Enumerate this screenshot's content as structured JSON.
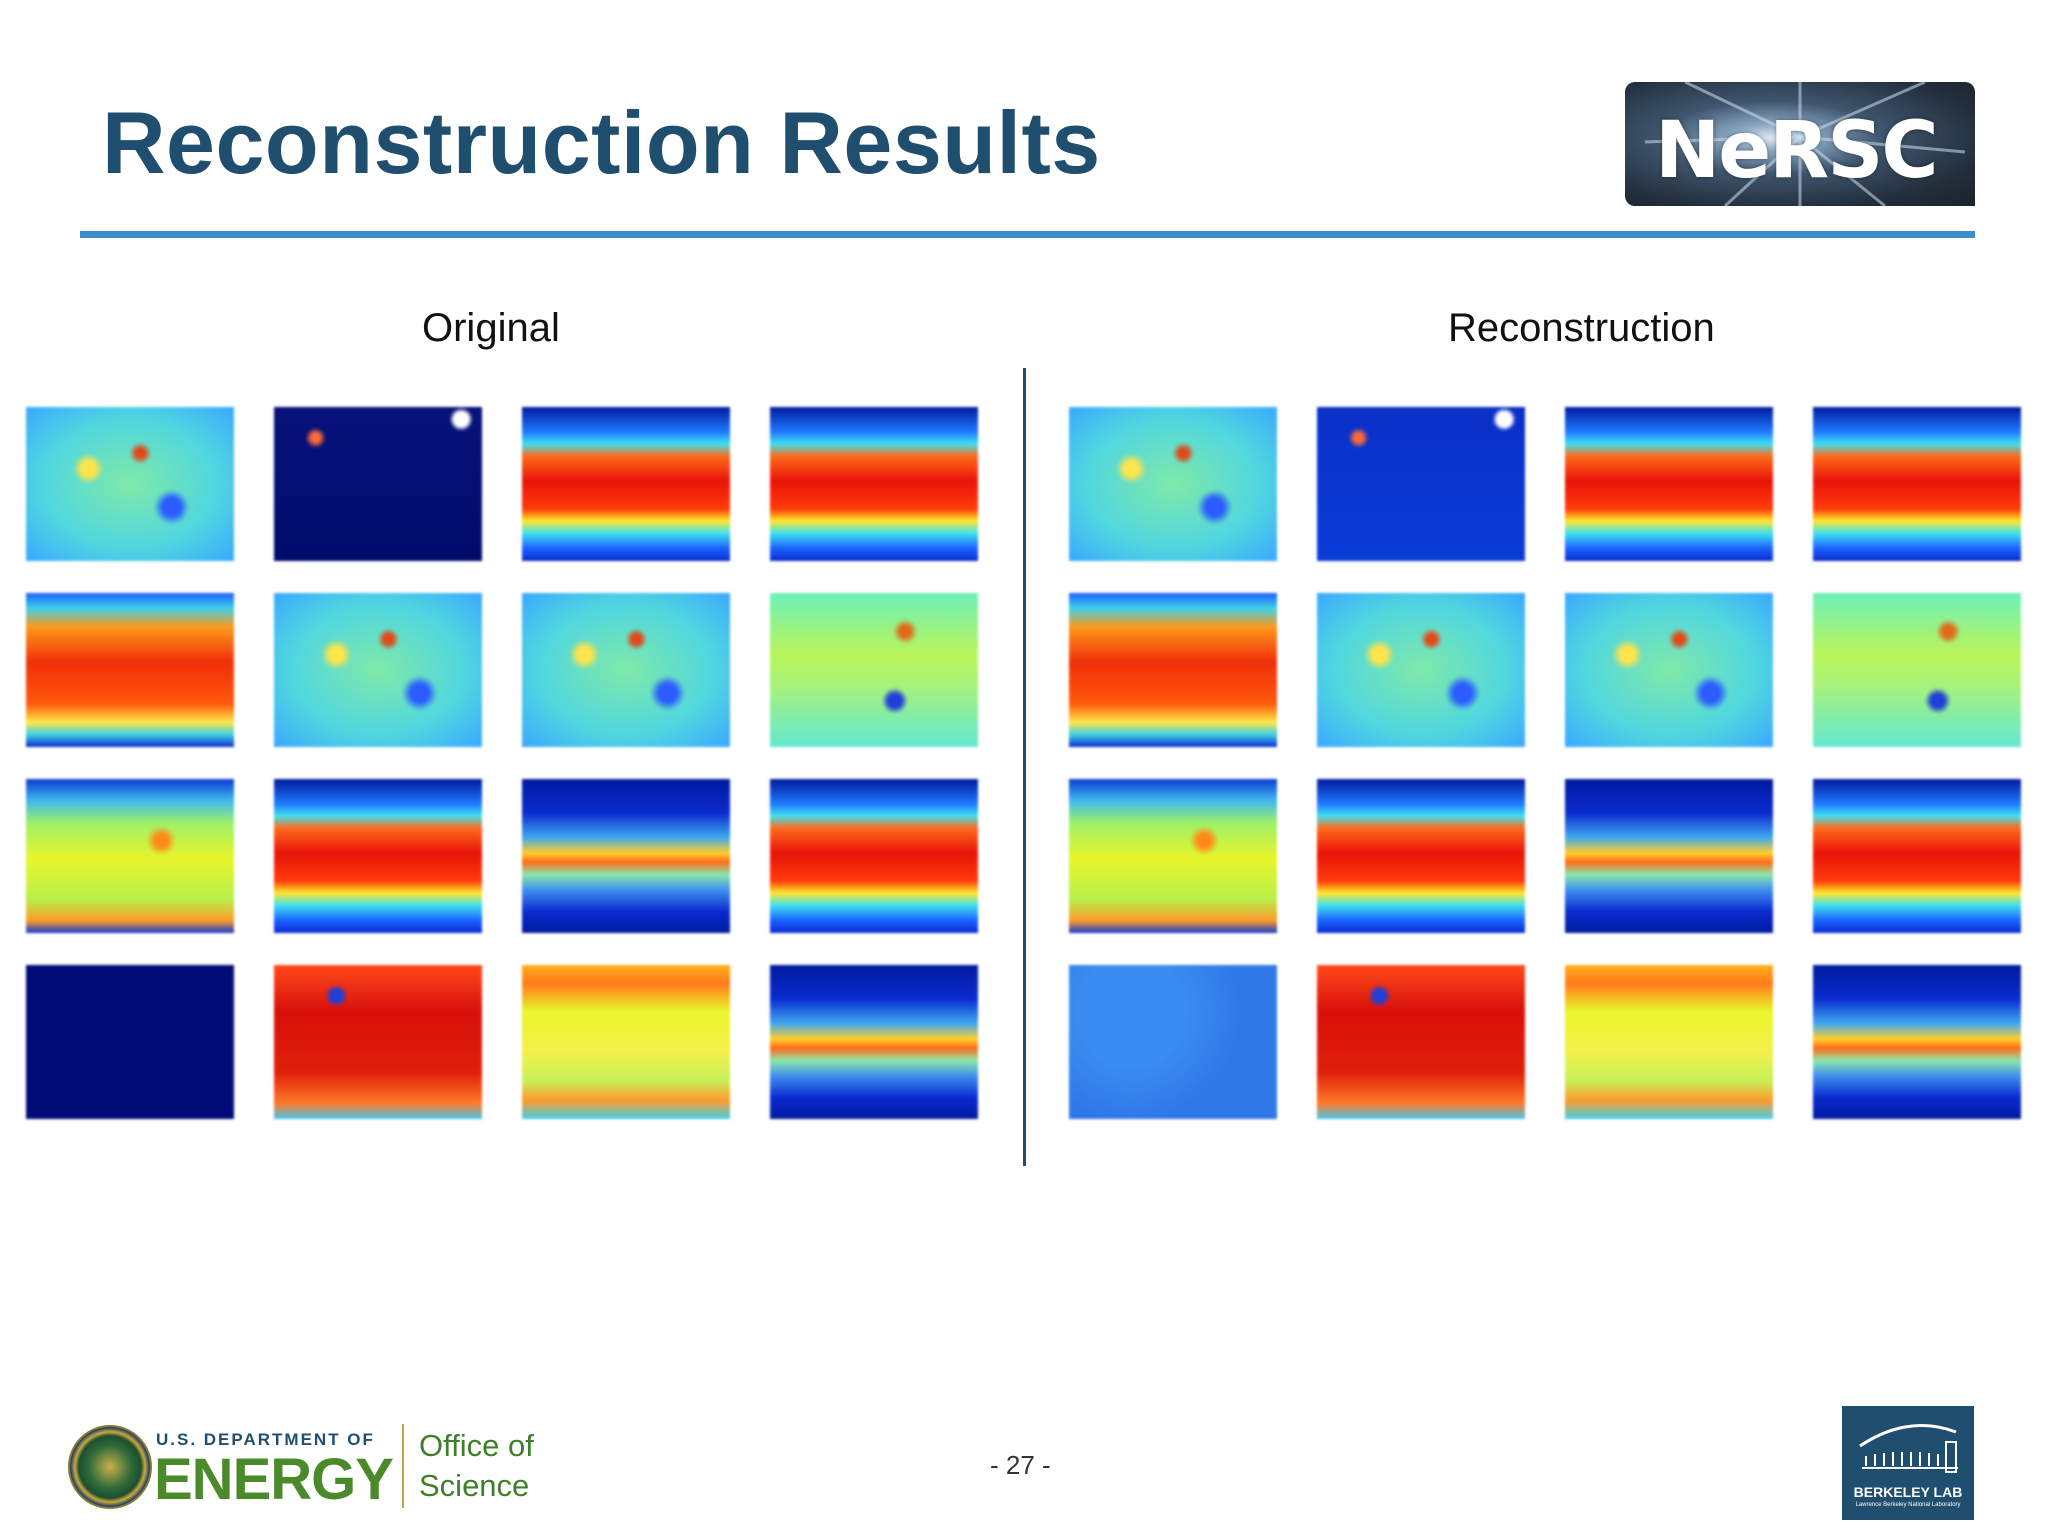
{
  "slide": {
    "title": "Reconstruction Results",
    "page_number": "- 27 -"
  },
  "logos": {
    "nersc": "NeRSC",
    "doe_small": "U.S. DEPARTMENT OF",
    "doe_big": "ENERGY",
    "office_line1": "Office of",
    "office_line2": "Science",
    "berkeley": "BERKELEY LAB",
    "berkeley_sub": "Lawrence Berkeley National Laboratory"
  },
  "panels": [
    {
      "heading": "Original",
      "rows": [
        [
          "mixed",
          "very-low",
          "band",
          "band"
        ],
        [
          "high",
          "mixed",
          "mixed",
          "mixed-light"
        ],
        [
          "mid",
          "band",
          "low-band",
          "band"
        ],
        [
          "empty",
          "very-high",
          "mid-warm",
          "low-band"
        ]
      ]
    },
    {
      "heading": "Reconstruction",
      "rows": [
        [
          "mixed",
          "low",
          "band",
          "band"
        ],
        [
          "high",
          "mixed",
          "mixed",
          "mixed-light"
        ],
        [
          "mid",
          "band",
          "low-band",
          "band"
        ],
        [
          "flat-low",
          "very-high",
          "mid-warm",
          "low-band"
        ]
      ]
    }
  ]
}
